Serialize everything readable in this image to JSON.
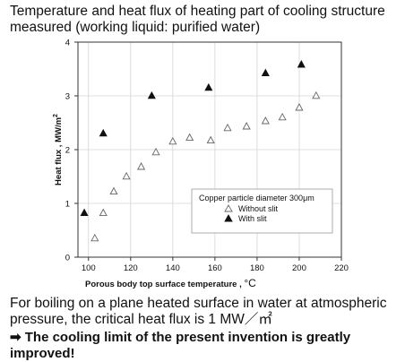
{
  "header": {
    "title_line1": "Temperature and heat flux of heating part of cooling structure",
    "title_line2": "measured (working liquid: purified water)"
  },
  "chart_data": {
    "type": "scatter",
    "xlabel_prefix": "Porous body top surface temperature , ",
    "xlabel_unit": "°C",
    "ylabel_prefix": "Heat flux , MW/m",
    "ylabel_sup": "2",
    "xlim": [
      95,
      220
    ],
    "ylim": [
      0,
      4
    ],
    "xticks": [
      100,
      120,
      140,
      160,
      180,
      200,
      220
    ],
    "yticks": [
      0,
      1,
      2,
      3,
      4
    ],
    "grid": true,
    "legend_title": "Copper particle diameter 300μm",
    "legend_position": "bottom-right",
    "series": [
      {
        "name": "Without slit",
        "marker": "open-triangle",
        "color": "#666666",
        "points": [
          [
            103,
            0.35
          ],
          [
            107,
            0.82
          ],
          [
            112,
            1.22
          ],
          [
            118,
            1.5
          ],
          [
            125,
            1.68
          ],
          [
            132,
            1.95
          ],
          [
            140,
            2.15
          ],
          [
            148,
            2.22
          ],
          [
            158,
            2.17
          ],
          [
            166,
            2.4
          ],
          [
            175,
            2.43
          ],
          [
            184,
            2.53
          ],
          [
            192,
            2.6
          ],
          [
            200,
            2.78
          ],
          [
            208,
            3.0
          ]
        ]
      },
      {
        "name": "With slit",
        "marker": "filled-triangle",
        "color": "#111111",
        "points": [
          [
            98,
            0.82
          ],
          [
            107,
            2.3
          ],
          [
            130,
            3.0
          ],
          [
            157,
            3.15
          ],
          [
            184,
            3.42
          ],
          [
            201,
            3.58
          ]
        ]
      }
    ]
  },
  "footer": {
    "note_line1": "For boiling on a plane heated surface in water at atmospheric",
    "note_line2": "pressure, the critical heat flux is  1 MW／㎡",
    "conclusion_arrow": "➡",
    "conclusion_line1": " The cooling limit of the present invention is greatly",
    "conclusion_line2": "improved!"
  }
}
